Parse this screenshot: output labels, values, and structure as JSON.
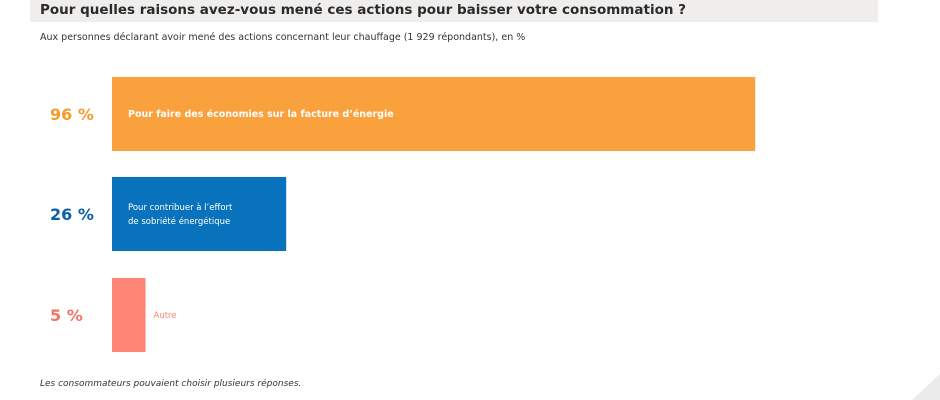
{
  "chart_data": {
    "type": "bar",
    "orientation": "horizontal",
    "title": "Pour quelles raisons avez-vous mené ces actions pour baisser votre consommation ?",
    "subtitle": "Aux personnes déclarant avoir mené des actions concernant leur chauffage (1 929  répondants), en %",
    "note": "Les consommateurs pouvaient choisir plusieurs réponses.",
    "xlim": [
      0,
      100
    ],
    "grid": false,
    "legend": "none",
    "bars": [
      {
        "value": 96,
        "value_label": "96 %",
        "label_lines": [
          "Pour faire des économies sur la facture d’énergie"
        ],
        "color": "#f9a13d",
        "value_color": "#f59a2b",
        "label_color": "#ffffff",
        "label_inside": true
      },
      {
        "value": 26,
        "value_label": "26 %",
        "label_lines": [
          "Pour contribuer à l’effort",
          "de sobriété énergétique"
        ],
        "color": "#0972bd",
        "value_color": "#0c5fa8",
        "label_color": "#ffffff",
        "label_inside": true
      },
      {
        "value": 5,
        "value_label": "5 %",
        "label_lines": [
          "Autre"
        ],
        "color": "#ff8677",
        "value_color": "#f4735f",
        "label_color": "#ff8677",
        "label_inside": false
      }
    ]
  }
}
